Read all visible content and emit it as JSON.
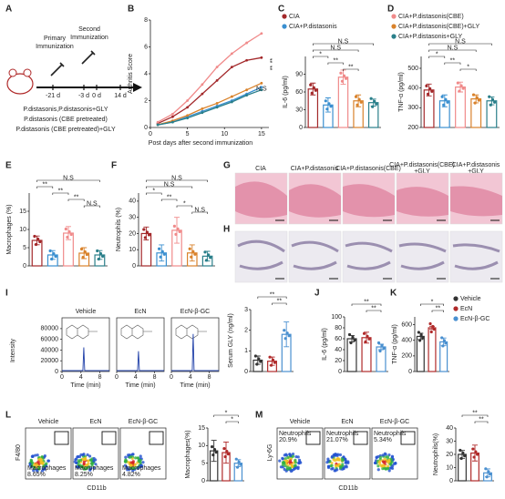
{
  "chart_data": [
    {
      "panel": "B",
      "type": "line",
      "y_label": "Arthritis Score",
      "x_label": "Post days after second immunization",
      "x": [
        1,
        3,
        5,
        7,
        9,
        11,
        13,
        15
      ],
      "xlim": [
        0,
        16
      ],
      "xticks": [
        0,
        5,
        10,
        15
      ],
      "ylim": [
        0,
        8
      ],
      "yticks": [
        0,
        2,
        4,
        6,
        8
      ],
      "series": [
        {
          "name": "CIA",
          "color": "#a3282a",
          "values": [
            0.3,
            0.8,
            1.5,
            2.5,
            3.5,
            4.5,
            5.0,
            5.2
          ]
        },
        {
          "name": "CIA+P.distasonis",
          "color": "#3a8fd0",
          "values": [
            0.2,
            0.4,
            0.8,
            1.2,
            1.6,
            2.0,
            2.5,
            3.0
          ]
        },
        {
          "name": "CIA+P.distasonis(CBE)",
          "color": "#f08a8a",
          "values": [
            0.4,
            1.0,
            2.0,
            3.2,
            4.5,
            5.5,
            6.3,
            7.0
          ]
        },
        {
          "name": "CIA+P.distasonis(CBE)+GLY",
          "color": "#d9822b",
          "values": [
            0.2,
            0.5,
            0.9,
            1.4,
            1.8,
            2.3,
            2.8,
            3.3
          ]
        },
        {
          "name": "CIA+P.distasonis+GLY",
          "color": "#2a7f8a",
          "values": [
            0.2,
            0.4,
            0.7,
            1.1,
            1.5,
            1.9,
            2.4,
            2.8
          ]
        }
      ],
      "annotations": [
        "**",
        "**",
        "N.S"
      ]
    },
    {
      "panel": "C",
      "type": "bar",
      "y_label": "IL-6 (pg/ml)",
      "categories": [
        null,
        null,
        null,
        null,
        null
      ],
      "values": [
        65,
        38,
        85,
        45,
        42
      ],
      "errors": [
        10,
        12,
        12,
        10,
        6
      ],
      "colors": [
        "#a3282a",
        "#3a8fd0",
        "#f08a8a",
        "#d9822b",
        "#2a7f8a"
      ],
      "ylim": [
        0,
        120
      ],
      "yticks": [
        0,
        30,
        60,
        90
      ],
      "annotations": [
        {
          "text": "N.S",
          "from": 0,
          "to": 4
        },
        {
          "text": "N.S",
          "from": 0,
          "to": 3
        },
        {
          "text": "*",
          "from": 0,
          "to": 1
        },
        {
          "text": "**",
          "from": 1,
          "to": 2
        },
        {
          "text": "**",
          "from": 2,
          "to": 3
        }
      ]
    },
    {
      "panel": "D",
      "type": "bar",
      "y_label": "TNF-α (pg/ml)",
      "categories": [
        null,
        null,
        null,
        null,
        null
      ],
      "values": [
        390,
        335,
        405,
        345,
        335
      ],
      "errors": [
        30,
        30,
        25,
        20,
        20
      ],
      "colors": [
        "#a3282a",
        "#3a8fd0",
        "#f08a8a",
        "#d9822b",
        "#2a7f8a"
      ],
      "ylim": [
        200,
        560
      ],
      "yticks": [
        200,
        300,
        400,
        500
      ],
      "annotations": [
        {
          "text": "N.S",
          "from": 0,
          "to": 4
        },
        {
          "text": "N.S",
          "from": 0,
          "to": 3
        },
        {
          "text": "*",
          "from": 0,
          "to": 1
        },
        {
          "text": "**",
          "from": 1,
          "to": 2
        },
        {
          "text": "*",
          "from": 2,
          "to": 3
        }
      ]
    },
    {
      "panel": "E",
      "type": "bar",
      "y_label": "Macrophages (%)",
      "categories": [
        null,
        null,
        null,
        null,
        null
      ],
      "values": [
        7,
        3,
        9,
        3.5,
        3
      ],
      "errors": [
        1.2,
        1.2,
        1.8,
        1.5,
        1.2
      ],
      "colors": [
        "#a3282a",
        "#3a8fd0",
        "#f08a8a",
        "#d9822b",
        "#2a7f8a"
      ],
      "ylim": [
        0,
        20
      ],
      "yticks": [
        0,
        5,
        10,
        15
      ],
      "annotations": [
        {
          "text": "N.S",
          "from": 0,
          "to": 4
        },
        {
          "text": "**",
          "from": 0,
          "to": 1
        },
        {
          "text": "**",
          "from": 1,
          "to": 2
        },
        {
          "text": "**",
          "from": 2,
          "to": 3
        },
        {
          "text": "N.S",
          "from": 3,
          "to": 4
        }
      ]
    },
    {
      "panel": "F",
      "type": "bar",
      "y_label": "Neutrophils (%)",
      "categories": [
        null,
        null,
        null,
        null,
        null
      ],
      "values": [
        20,
        8,
        22,
        8,
        6
      ],
      "errors": [
        4,
        5,
        8,
        5,
        3
      ],
      "colors": [
        "#a3282a",
        "#3a8fd0",
        "#f08a8a",
        "#d9822b",
        "#2a7f8a"
      ],
      "ylim": [
        0,
        45
      ],
      "yticks": [
        0,
        10,
        20,
        30,
        40
      ],
      "annotations": [
        {
          "text": "N.S",
          "from": 0,
          "to": 4
        },
        {
          "text": "N.S",
          "from": 0,
          "to": 3
        },
        {
          "text": "*",
          "from": 0,
          "to": 1
        },
        {
          "text": "**",
          "from": 1,
          "to": 2
        },
        {
          "text": "*",
          "from": 2,
          "to": 3
        },
        {
          "text": "N.S",
          "from": 3,
          "to": 4
        }
      ]
    },
    {
      "type": "bar",
      "y_label": "Serum GLY (ng/ml)",
      "categories": [
        null,
        null,
        null
      ],
      "values": [
        0.55,
        0.5,
        1.8
      ],
      "errors": [
        0.2,
        0.2,
        0.6
      ],
      "colors": [
        "#333333",
        "#b02a2a",
        "#4a90d0"
      ],
      "ylim": [
        0,
        3
      ],
      "yticks": [
        0,
        1,
        2,
        3
      ],
      "annotations": [
        {
          "text": "**",
          "from": 0,
          "to": 2
        },
        {
          "text": "**",
          "from": 1,
          "to": 2
        }
      ]
    },
    {
      "panel": "J",
      "type": "bar",
      "y_label": "IL-6 (pg/ml)",
      "categories": [
        null,
        null,
        null
      ],
      "values": [
        60,
        62,
        45
      ],
      "errors": [
        6,
        10,
        5
      ],
      "colors": [
        "#333333",
        "#b02a2a",
        "#4a90d0"
      ],
      "ylim": [
        0,
        100
      ],
      "yticks": [
        0,
        20,
        40,
        60,
        80,
        100
      ],
      "annotations": [
        {
          "text": "**",
          "from": 0,
          "to": 2
        },
        {
          "text": "**",
          "from": 1,
          "to": 2
        }
      ]
    },
    {
      "panel": "K",
      "type": "bar",
      "y_label": "TNF-α (pg/ml)",
      "categories": [
        null,
        null,
        null
      ],
      "values": [
        450,
        560,
        380
      ],
      "errors": [
        40,
        20,
        50
      ],
      "colors": [
        "#333333",
        "#b02a2a",
        "#4a90d0"
      ],
      "ylim": [
        0,
        700
      ],
      "yticks": [
        0,
        200,
        400,
        600
      ],
      "annotations": [
        {
          "text": "*",
          "from": 0,
          "to": 2
        },
        {
          "text": "**",
          "from": 1,
          "to": 2
        }
      ]
    },
    {
      "type": "bar",
      "y_label": "Macrophages(%)",
      "categories": [
        null,
        null,
        null
      ],
      "values": [
        8.5,
        8,
        5
      ],
      "errors": [
        3,
        3,
        1
      ],
      "colors": [
        "#333333",
        "#b02a2a",
        "#4a90d0"
      ],
      "ylim": [
        0,
        15
      ],
      "yticks": [
        0,
        5,
        10,
        15
      ],
      "annotations": [
        {
          "text": "*",
          "from": 0,
          "to": 2
        },
        {
          "text": "*",
          "from": 1,
          "to": 2
        }
      ]
    },
    {
      "type": "bar",
      "y_label": "Neutrophils(%)",
      "categories": [
        null,
        null,
        null
      ],
      "values": [
        20,
        21,
        6
      ],
      "errors": [
        3,
        6,
        3
      ],
      "colors": [
        "#333333",
        "#b02a2a",
        "#4a90d0"
      ],
      "ylim": [
        0,
        40
      ],
      "yticks": [
        0,
        10,
        20,
        30,
        40
      ],
      "annotations": [
        {
          "text": "**",
          "from": 0,
          "to": 2
        },
        {
          "text": "**",
          "from": 1,
          "to": 2
        }
      ]
    }
  ],
  "scheme": {
    "panel": "A",
    "first": "Primary",
    "first2": "Immunization",
    "second": "Second",
    "second2": "Immunization",
    "days": [
      "-21 d",
      "-3 d",
      "0 d",
      "14 d"
    ],
    "groups": [
      "P.distasonis,P.distasonis+GLY",
      "P.distasonis (CBE pretreated)",
      "P.distasonis (CBE pretreated)+GLY"
    ]
  },
  "histology": {
    "panel_g": "G",
    "panel_h": "H",
    "columns": [
      [
        "CIA"
      ],
      [
        "CIA+P.distasonis"
      ],
      [
        "CIA+P.distasonis(CBE)"
      ],
      [
        "CIA+P.distasonis(CBE)",
        "+GLY"
      ],
      [
        "CIA+P.distasonis",
        "+GLY"
      ]
    ]
  },
  "chromatograms": {
    "panel": "I",
    "y_label": "Intensity",
    "x_label": "Time (min)",
    "yticks": [
      0,
      20000,
      40000,
      60000,
      80000
    ],
    "xticks": [
      0,
      4,
      8
    ],
    "samples": [
      "Vehicle",
      "EcN",
      "EcN-β-GC"
    ]
  },
  "legend_ijk": [
    "Vehicle",
    "EcN",
    "EcN-β-GC"
  ],
  "flow_l": {
    "panel": "L",
    "y_label": "F4/80",
    "x_label": "CD11b",
    "gate": "Macrophages",
    "samples": [
      {
        "name": "Vehicle",
        "pct": "8.65%"
      },
      {
        "name": "EcN",
        "pct": "8.25%"
      },
      {
        "name": "EcN-β-GC",
        "pct": "4.82%"
      }
    ]
  },
  "flow_m": {
    "panel": "M",
    "y_label": "Ly-6G",
    "x_label": "CD11b",
    "gate": "Neutrophils",
    "samples": [
      {
        "name": "Vehicle",
        "pct": "20.9%"
      },
      {
        "name": "EcN",
        "pct": "21.07%"
      },
      {
        "name": "EcN-β-GC",
        "pct": "5.34%"
      }
    ]
  }
}
